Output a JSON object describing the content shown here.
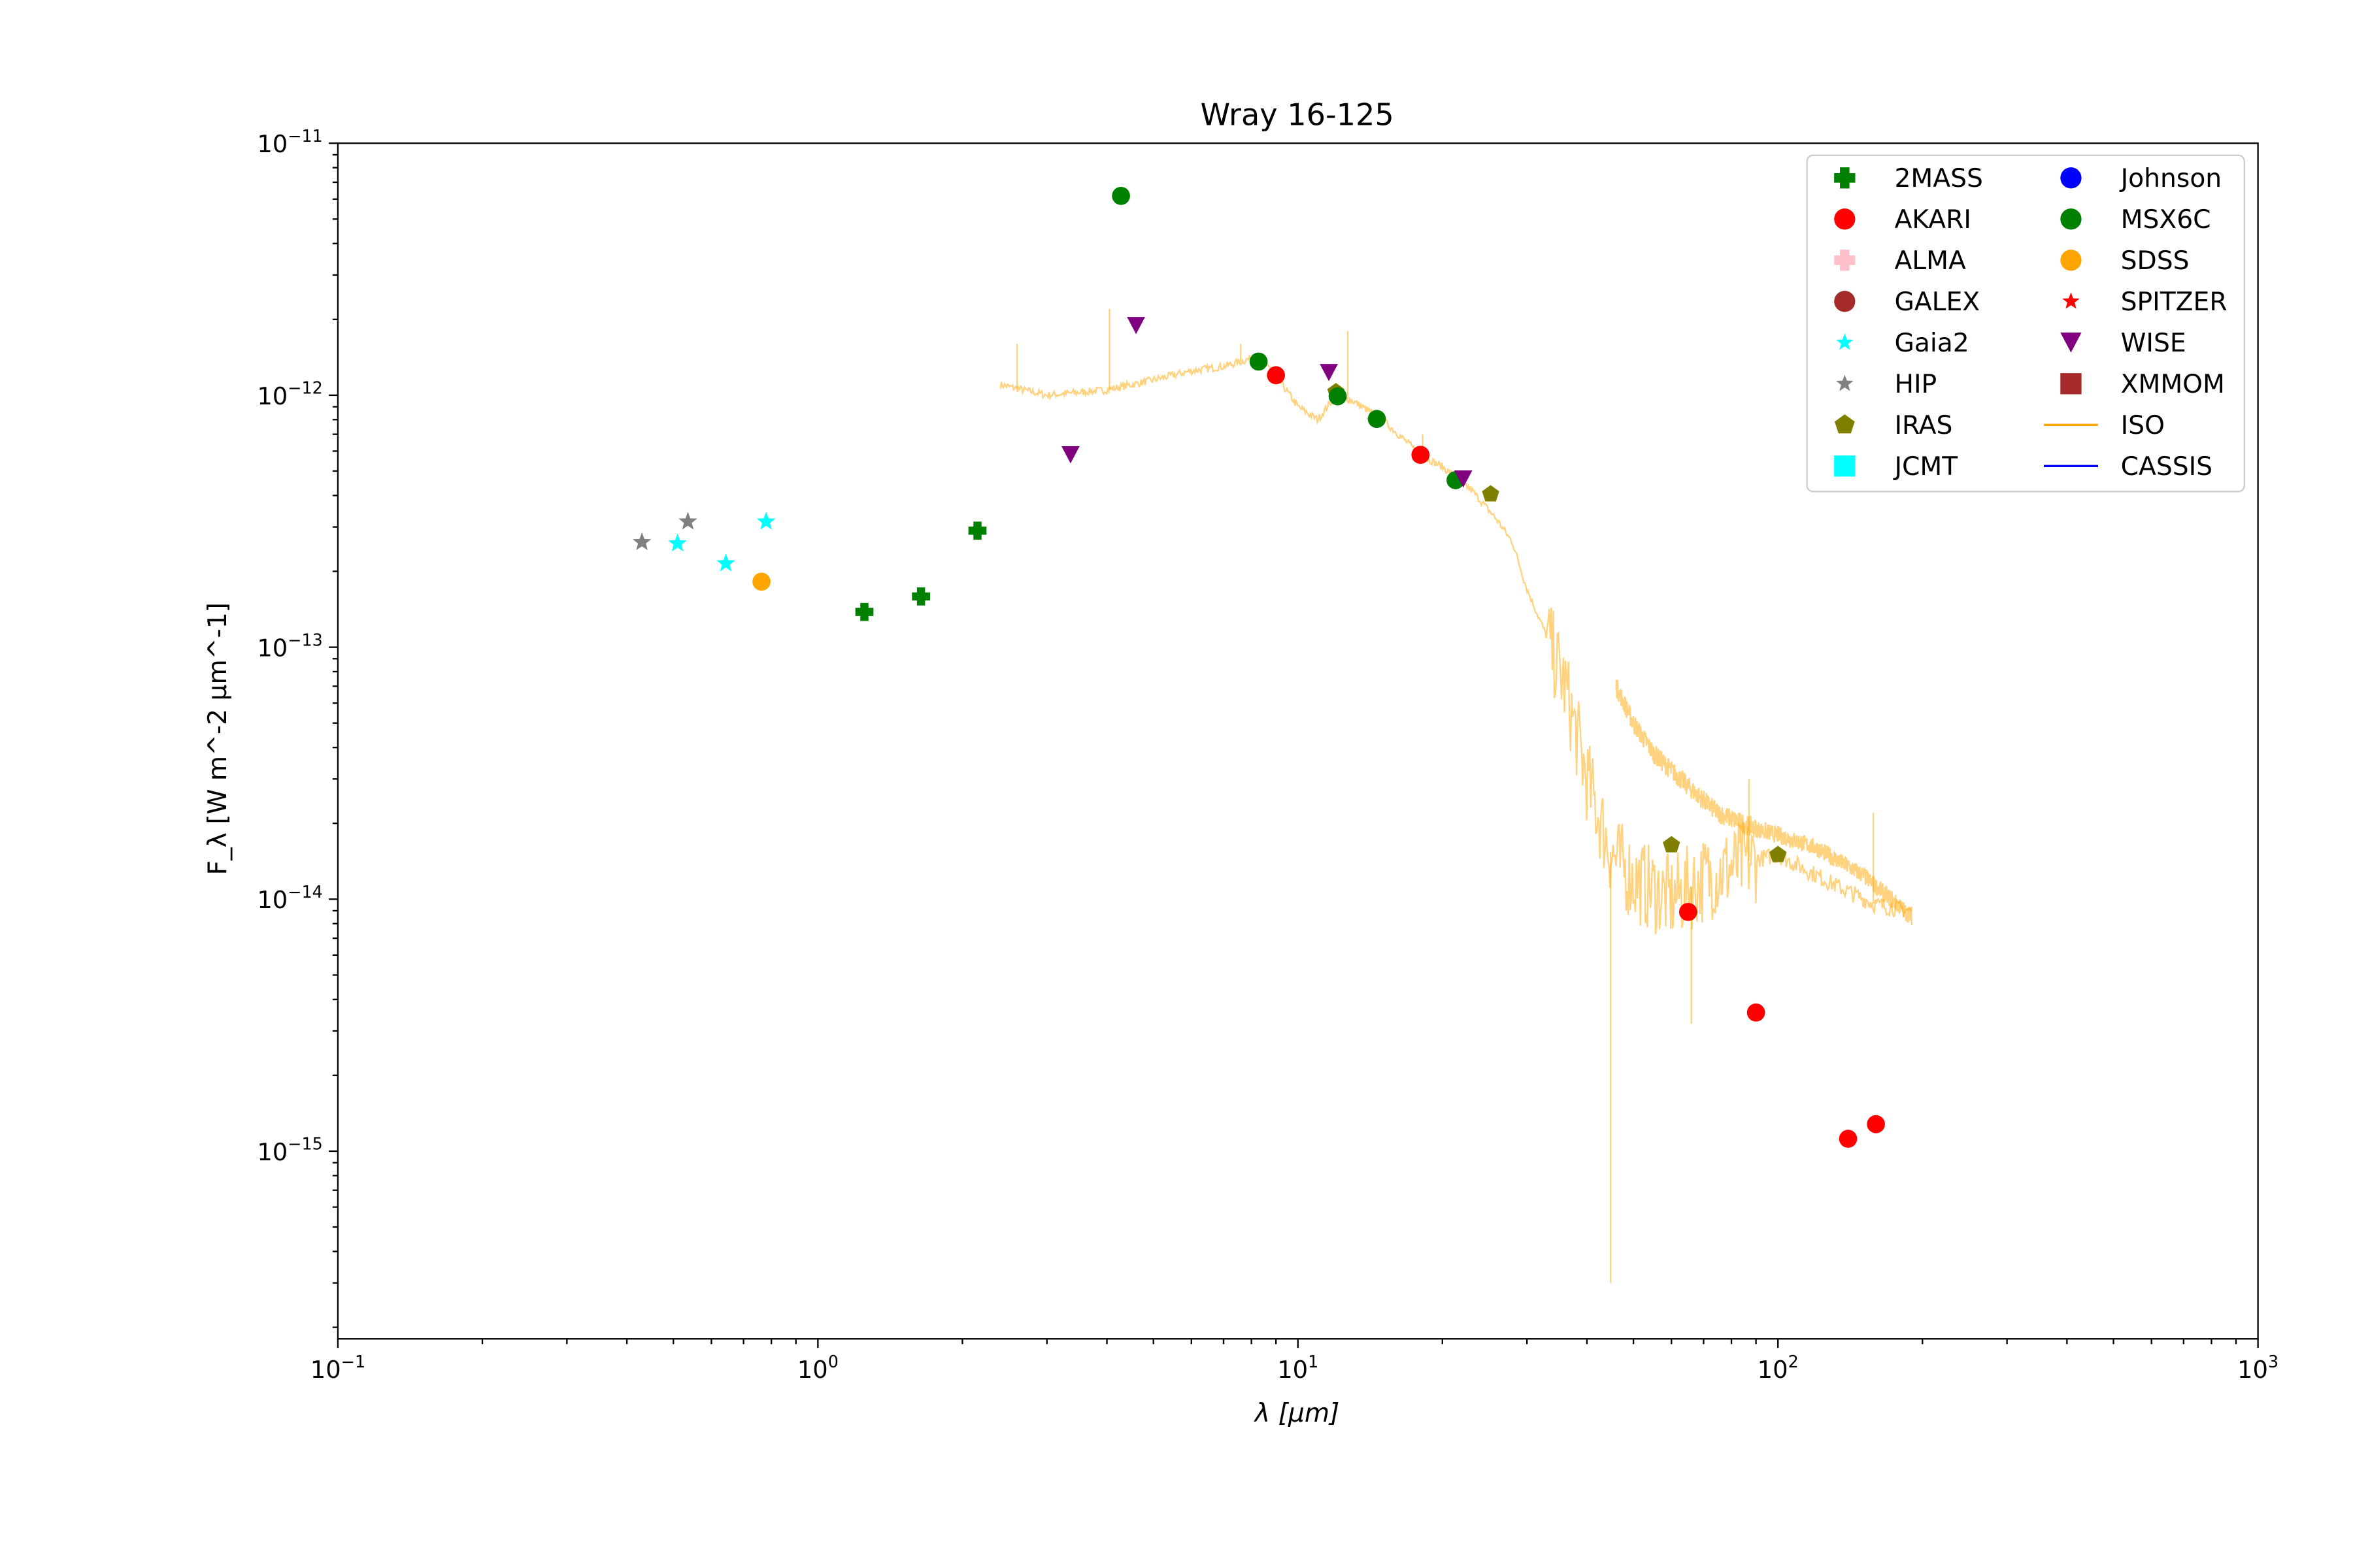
{
  "chart_data": {
    "type": "scatter",
    "title": "Wray 16-125",
    "xlabel": "λ [μm]",
    "ylabel": "F_λ [W m^-2 μm^-1]",
    "xscale": "log",
    "yscale": "log",
    "xlim": [
      0.1,
      1000
    ],
    "ylim": [
      1.8e-16,
      1e-11
    ],
    "grid": false,
    "legend_placement": "top-right",
    "xticks": [
      {
        "value": 0.1,
        "base": "10",
        "exp": "−1"
      },
      {
        "value": 1,
        "base": "10",
        "exp": "0"
      },
      {
        "value": 10,
        "base": "10",
        "exp": "1"
      },
      {
        "value": 100,
        "base": "10",
        "exp": "2"
      },
      {
        "value": 1000,
        "base": "10",
        "exp": "3"
      }
    ],
    "yticks": [
      {
        "value": 1e-11,
        "base": "10",
        "exp": "−11"
      },
      {
        "value": 1e-12,
        "base": "10",
        "exp": "−12"
      },
      {
        "value": 1e-13,
        "base": "10",
        "exp": "−13"
      },
      {
        "value": 1e-14,
        "base": "10",
        "exp": "−14"
      },
      {
        "value": 1e-15,
        "base": "10",
        "exp": "−15"
      }
    ],
    "series": [
      {
        "name": "2MASS",
        "marker": "plus",
        "color": "#008000",
        "points": [
          [
            1.25,
            1.38e-13
          ],
          [
            1.64,
            1.59e-13
          ],
          [
            2.15,
            2.9e-13
          ]
        ]
      },
      {
        "name": "AKARI",
        "marker": "circle",
        "color": "#ff0000",
        "points": [
          [
            9.0,
            1.2e-12
          ],
          [
            18.0,
            5.8e-13
          ],
          [
            65,
            8.9e-15
          ],
          [
            90,
            3.55e-15
          ],
          [
            140,
            1.12e-15
          ],
          [
            160,
            1.28e-15
          ]
        ]
      },
      {
        "name": "ALMA",
        "marker": "plus",
        "color": "#ffc0cb",
        "points": []
      },
      {
        "name": "GALEX",
        "marker": "circle",
        "color": "#a52a2a",
        "points": []
      },
      {
        "name": "Gaia2",
        "marker": "star",
        "color": "#00ffff",
        "points": [
          [
            0.51,
            2.58e-13
          ],
          [
            0.643,
            2.15e-13
          ],
          [
            0.78,
            3.15e-13
          ]
        ]
      },
      {
        "name": "HIP",
        "marker": "star",
        "color": "#808080",
        "points": [
          [
            0.43,
            2.61e-13
          ],
          [
            0.536,
            3.15e-13
          ]
        ]
      },
      {
        "name": "IRAS",
        "marker": "pentagon",
        "color": "#808000",
        "points": [
          [
            12,
            1.03e-12
          ],
          [
            25.2,
            4.05e-13
          ],
          [
            60,
            1.64e-14
          ],
          [
            100,
            1.5e-14
          ]
        ]
      },
      {
        "name": "JCMT",
        "marker": "square",
        "color": "#00ffff",
        "points": []
      },
      {
        "name": "Johnson",
        "marker": "circle",
        "color": "#0000ff",
        "points": []
      },
      {
        "name": "MSX6C",
        "marker": "circle",
        "color": "#008000",
        "points": [
          [
            4.28,
            6.18e-12
          ],
          [
            8.28,
            1.36e-12
          ],
          [
            12.1,
            9.9e-13
          ],
          [
            14.6,
            8.05e-13
          ],
          [
            21.3,
            4.6e-13
          ]
        ]
      },
      {
        "name": "SDSS",
        "marker": "circle",
        "color": "#ffa500",
        "points": [
          [
            0.763,
            1.82e-13
          ]
        ]
      },
      {
        "name": "SPITZER",
        "marker": "star",
        "color": "#ff0000",
        "points": []
      },
      {
        "name": "WISE",
        "marker": "triangle-down",
        "color": "#800080",
        "points": [
          [
            3.36,
            5.8e-13
          ],
          [
            4.6,
            1.89e-12
          ],
          [
            11.6,
            1.23e-12
          ],
          [
            22.1,
            4.65e-13
          ]
        ]
      },
      {
        "name": "XMMOM",
        "marker": "square",
        "color": "#a52a2a",
        "points": []
      },
      {
        "name": "ISO",
        "marker": "line",
        "color": "#ffa500",
        "branches": [
          [
            [
              2.4,
              1.1e-12
            ],
            [
              3,
              1e-12
            ],
            [
              4,
              1.05e-12
            ],
            [
              5,
              1.15e-12
            ],
            [
              6,
              1.25e-12
            ],
            [
              7,
              1.3e-12
            ],
            [
              8,
              1.4e-12
            ],
            [
              8.6,
              1.35e-12
            ],
            [
              10,
              9e-13
            ],
            [
              11,
              8e-13
            ],
            [
              12,
              1e-12
            ],
            [
              13,
              9.5e-13
            ],
            [
              15,
              8e-13
            ],
            [
              18,
              5.8e-13
            ],
            [
              20,
              5.2e-13
            ],
            [
              23,
              4.2e-13
            ],
            [
              26,
              3.2e-13
            ],
            [
              28,
              2.6e-13
            ],
            [
              30,
              1.7e-13
            ],
            [
              33,
              1.1e-13
            ],
            [
              36,
              7e-14
            ],
            [
              40,
              3e-14
            ],
            [
              45,
              1.5e-14
            ],
            [
              50,
              1.2e-14
            ],
            [
              60,
              1e-14
            ],
            [
              70,
              1.2e-14
            ],
            [
              85,
              1.4e-14
            ],
            [
              100,
              1.5e-14
            ],
            [
              130,
              1.15e-14
            ],
            [
              160,
              9.5e-15
            ],
            [
              190,
              9e-15
            ]
          ],
          [
            [
              46,
              7e-14
            ],
            [
              50,
              5e-14
            ],
            [
              55,
              3.8e-14
            ],
            [
              65,
              2.8e-14
            ],
            [
              75,
              2.2e-14
            ],
            [
              90,
              1.9e-14
            ],
            [
              100,
              1.8e-14
            ],
            [
              120,
              1.6e-14
            ],
            [
              150,
              1.25e-14
            ],
            [
              190,
              8.5e-15
            ]
          ]
        ],
        "spikes": [
          [
            2.6,
            1.6e-12
          ],
          [
            4.05,
            2.2e-12
          ],
          [
            7.6,
            1.6e-12
          ],
          [
            12.7,
            1.8e-12
          ],
          [
            18.2,
            7e-13
          ],
          [
            44.8,
            3e-16
          ],
          [
            66,
            3.2e-15
          ],
          [
            87,
            3e-14
          ],
          [
            158,
            2.2e-14
          ]
        ]
      },
      {
        "name": "CASSIS",
        "marker": "line",
        "color": "#0000ff",
        "branches": []
      }
    ]
  }
}
